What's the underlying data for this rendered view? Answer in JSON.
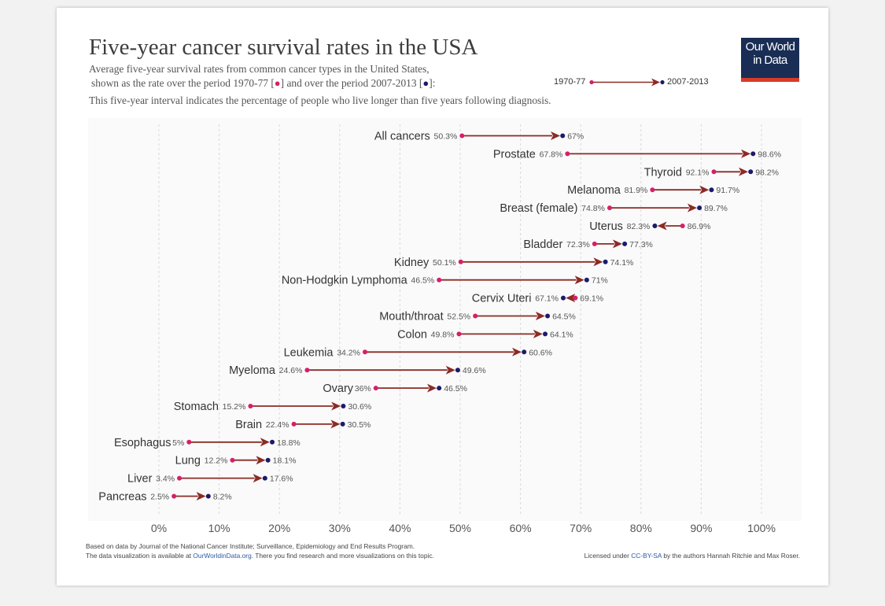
{
  "header": {
    "title": "Five-year cancer survival rates in the USA",
    "subtitle_line1": "Average five-year survival rates from common cancer types in the United States,",
    "subtitle_line2_a": "shown as the rate over the period 1970-77 [",
    "subtitle_line2_b": "] and over the period 2007-2013 [",
    "subtitle_line2_c": "]:",
    "subtitle_line3": "This five-year interval indicates the percentage of people who live longer than five years following diagnosis."
  },
  "legend": {
    "start_label": "1970-77",
    "end_label": "2007-2013"
  },
  "logo": {
    "line1": "Our World",
    "line2": "in Data"
  },
  "colors": {
    "start_dot": "#d61f69",
    "end_dot": "#1c1a6b",
    "arrow": "#8b2b25",
    "grid": "#d9d9d9"
  },
  "footer": {
    "source": "Based on data by Journal of the National Cancer Institute; Surveillance, Epidemiology and End Results Program.",
    "available_prefix": "The data visualization is available at ",
    "available_link": "OurWorldinData.org",
    "available_suffix": ". There you find research and more visualizations on this topic.",
    "license_prefix": "Licensed under ",
    "license_link": "CC-BY-SA",
    "license_suffix": " by the authors Hannah Ritchie and Max Roser."
  },
  "chart_data": {
    "type": "arrow-dot",
    "xlim": [
      0,
      100
    ],
    "x_ticks": [
      0,
      10,
      20,
      30,
      40,
      50,
      60,
      70,
      80,
      90,
      100
    ],
    "x_tick_labels": [
      "0%",
      "10%",
      "20%",
      "30%",
      "40%",
      "50%",
      "60%",
      "70%",
      "80%",
      "90%",
      "100%"
    ],
    "grid": true,
    "series": [
      {
        "name": "1970-77"
      },
      {
        "name": "2007-2013"
      }
    ],
    "rows": [
      {
        "label": "All cancers",
        "start": 50.3,
        "end": 67,
        "start_label": "50.3%",
        "end_label": "67%"
      },
      {
        "label": "Prostate",
        "start": 67.8,
        "end": 98.6,
        "start_label": "67.8%",
        "end_label": "98.6%"
      },
      {
        "label": "Thyroid",
        "start": 92.1,
        "end": 98.2,
        "start_label": "92.1%",
        "end_label": "98.2%"
      },
      {
        "label": "Melanoma",
        "start": 81.9,
        "end": 91.7,
        "start_label": "81.9%",
        "end_label": "91.7%"
      },
      {
        "label": "Breast (female)",
        "start": 74.8,
        "end": 89.7,
        "start_label": "74.8%",
        "end_label": "89.7%"
      },
      {
        "label": "Uterus",
        "start": 86.9,
        "end": 82.3,
        "start_label": "86.9%",
        "end_label": "82.3%"
      },
      {
        "label": "Bladder",
        "start": 72.3,
        "end": 77.3,
        "start_label": "72.3%",
        "end_label": "77.3%"
      },
      {
        "label": "Kidney",
        "start": 50.1,
        "end": 74.1,
        "start_label": "50.1%",
        "end_label": "74.1%"
      },
      {
        "label": "Non-Hodgkin Lymphoma",
        "start": 46.5,
        "end": 71,
        "start_label": "46.5%",
        "end_label": "71%"
      },
      {
        "label": "Cervix Uteri",
        "start": 69.1,
        "end": 67.1,
        "start_label": "69.1%",
        "end_label": "67.1%"
      },
      {
        "label": "Mouth/throat",
        "start": 52.5,
        "end": 64.5,
        "start_label": "52.5%",
        "end_label": "64.5%"
      },
      {
        "label": "Colon",
        "start": 49.8,
        "end": 64.1,
        "start_label": "49.8%",
        "end_label": "64.1%"
      },
      {
        "label": "Leukemia",
        "start": 34.2,
        "end": 60.6,
        "start_label": "34.2%",
        "end_label": "60.6%"
      },
      {
        "label": "Myeloma",
        "start": 24.6,
        "end": 49.6,
        "start_label": "24.6%",
        "end_label": "49.6%"
      },
      {
        "label": "Ovary",
        "start": 36,
        "end": 46.5,
        "start_label": "36%",
        "end_label": "46.5%"
      },
      {
        "label": "Stomach",
        "start": 15.2,
        "end": 30.6,
        "start_label": "15.2%",
        "end_label": "30.6%"
      },
      {
        "label": "Brain",
        "start": 22.4,
        "end": 30.5,
        "start_label": "22.4%",
        "end_label": "30.5%"
      },
      {
        "label": "Esophagus",
        "start": 5,
        "end": 18.8,
        "start_label": "5%",
        "end_label": "18.8%"
      },
      {
        "label": "Lung",
        "start": 12.2,
        "end": 18.1,
        "start_label": "12.2%",
        "end_label": "18.1%"
      },
      {
        "label": "Liver",
        "start": 3.4,
        "end": 17.6,
        "start_label": "3.4%",
        "end_label": "17.6%"
      },
      {
        "label": "Pancreas",
        "start": 2.5,
        "end": 8.2,
        "start_label": "2.5%",
        "end_label": "8.2%"
      }
    ]
  }
}
